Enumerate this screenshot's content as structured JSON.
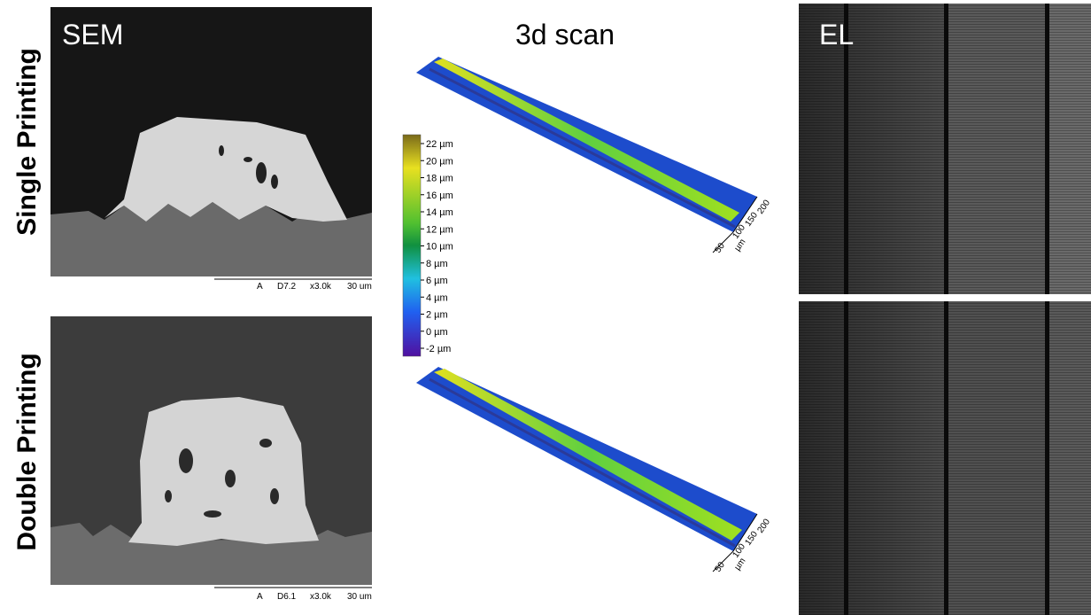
{
  "headers": {
    "sem": "SEM",
    "scan": "3d scan",
    "el": "EL"
  },
  "rows": [
    {
      "label": "Single Printing",
      "sem_footer": [
        "A",
        "D7.2",
        "x3.0k",
        "30 um"
      ],
      "scan_axis": [
        "50",
        "100",
        "150",
        "200",
        "µm"
      ]
    },
    {
      "label": "Double Printing",
      "sem_footer": [
        "A",
        "D6.1",
        "x3.0k",
        "30 um"
      ],
      "scan_axis": [
        "50",
        "100",
        "150",
        "200",
        "µm"
      ]
    }
  ],
  "colorbar": [
    "22 µm",
    "20 µm",
    "18 µm",
    "16 µm",
    "14 µm",
    "12 µm",
    "10 µm",
    "8 µm",
    "6 µm",
    "4 µm",
    "2 µm",
    "0 µm",
    "-2 µm"
  ]
}
